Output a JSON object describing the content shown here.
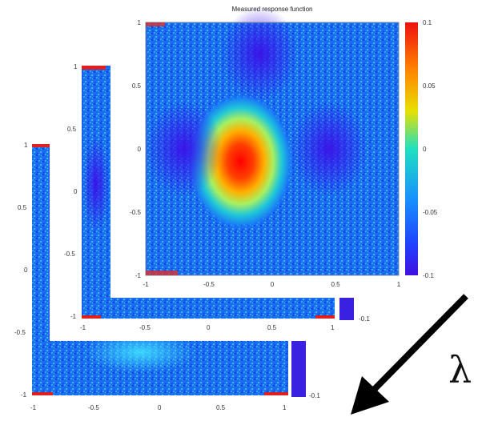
{
  "chart_data": [
    {
      "type": "heatmap",
      "layer": "front",
      "title": "Measured response function",
      "xlim": [
        -1,
        1
      ],
      "ylim": [
        -1,
        1
      ],
      "clim": [
        -0.1,
        0.1
      ],
      "colormap": "jet",
      "x_ticks": [
        "-1",
        "-0.5",
        "0",
        "0.5",
        "1"
      ],
      "y_ticks": [
        "1",
        "0.5",
        "0",
        "-0.5",
        "-1"
      ],
      "colorbar_ticks": [
        "0.1",
        "0.05",
        "0",
        "-0.05",
        "-0.1"
      ],
      "features": [
        {
          "kind": "positive-peak",
          "x": -0.25,
          "y": -0.1,
          "value": 0.1
        },
        {
          "kind": "negative-lobe",
          "x": 0.45,
          "y": 0.0,
          "value": -0.06
        },
        {
          "kind": "negative-lobe",
          "x": -0.7,
          "y": 0.0,
          "value": -0.05
        },
        {
          "kind": "negative-lobe",
          "x": -0.1,
          "y": 0.75,
          "value": -0.06
        }
      ]
    },
    {
      "type": "heatmap",
      "layer": "middle",
      "xlim": [
        -1,
        1
      ],
      "ylim": [
        -1,
        1
      ],
      "x_ticks": [
        "-1",
        "-0.5",
        "0",
        "0.5",
        "1"
      ],
      "y_ticks": [
        "1",
        "0.5",
        "0",
        "-0.5",
        "-1"
      ],
      "colorbar_ticks": [
        "-0.1"
      ]
    },
    {
      "type": "heatmap",
      "layer": "back",
      "xlim": [
        -1,
        1
      ],
      "ylim": [
        -1,
        1
      ],
      "x_ticks": [
        "-1",
        "-0.5",
        "0",
        "0.5",
        "1"
      ],
      "y_ticks": [
        "1",
        "0.5",
        "0",
        "-0.5",
        "-1"
      ],
      "colorbar_ticks": [
        "-0.1"
      ]
    }
  ],
  "annotation": {
    "symbol": "λ",
    "arrow": "down-left"
  }
}
